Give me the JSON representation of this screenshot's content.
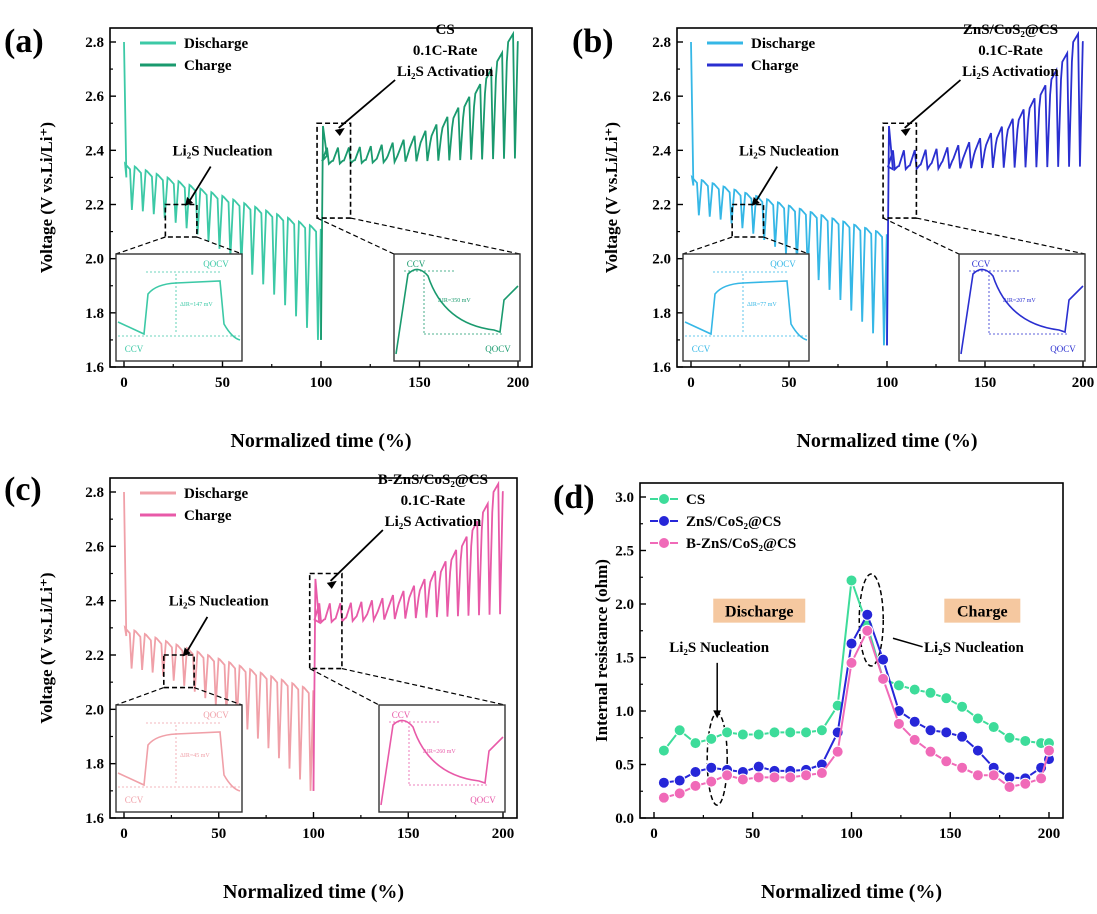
{
  "chart_data": [
    {
      "type": "line",
      "panel_label": "(a)",
      "xlabel": "Normalized time (%)",
      "ylabel": "Voltage (V vs.Li/Li⁺)",
      "xlim": [
        0,
        200
      ],
      "ylim": [
        1.6,
        2.8
      ],
      "x_ticks": [
        "0",
        "50",
        "100",
        "150",
        "200"
      ],
      "y_ticks": [
        "1.6",
        "1.8",
        "2.0",
        "2.2",
        "2.4",
        "2.6",
        "2.8"
      ],
      "annotation_lines": [
        "CS",
        "0.1C-Rate",
        "Li₂S Activation"
      ],
      "nucleation_label": "Li₂S Nucleation",
      "legend": [
        "Discharge",
        "Charge"
      ],
      "colors": {
        "discharge": "#3cc9a6",
        "charge": "#1a9a6e"
      },
      "inset_left": {
        "top_label": "QOCV",
        "bottom_label": "CCV",
        "value_label": "ΔIR=147 mV"
      },
      "inset_right": {
        "top_label": "CCV",
        "bottom_label": "QOCV",
        "value_label": "ΔIR=350 mV"
      },
      "discharge": {
        "start": 2.8,
        "first_ccv": 2.3,
        "qocv_start": 2.35,
        "qocv_end": 2.12,
        "ccv_start": 2.18,
        "ccv_end": 1.7
      },
      "charge": {
        "spike": 2.49,
        "first_ccv": 2.38,
        "qocv_start": 2.36,
        "qocv_end": 2.38,
        "ccv_start": 2.38,
        "ccv_end": 2.8
      },
      "pulses": 18
    },
    {
      "type": "line",
      "panel_label": "(b)",
      "xlabel": "Normalized time (%)",
      "ylabel": "Voltage (V vs.Li/Li⁺)",
      "xlim": [
        0,
        200
      ],
      "ylim": [
        1.6,
        2.8
      ],
      "x_ticks": [
        "0",
        "50",
        "100",
        "150",
        "200"
      ],
      "y_ticks": [
        "1.6",
        "1.8",
        "2.0",
        "2.2",
        "2.4",
        "2.6",
        "2.8"
      ],
      "annotation_lines": [
        "ZnS/CoS₂@CS",
        "0.1C-Rate",
        "Li₂S Activation"
      ],
      "nucleation_label": "Li₂S Nucleation",
      "legend": [
        "Discharge",
        "Charge"
      ],
      "colors": {
        "discharge": "#35b7e6",
        "charge": "#2a2fd0"
      },
      "inset_left": {
        "top_label": "QOCV",
        "bottom_label": "CCV",
        "value_label": "ΔIR=77 mV"
      },
      "inset_right": {
        "top_label": "CCV",
        "bottom_label": "QOCV",
        "value_label": "ΔIR=207 mV"
      },
      "discharge": {
        "start": 2.8,
        "first_ccv": 2.27,
        "qocv_start": 2.3,
        "qocv_end": 2.1,
        "ccv_start": 2.16,
        "ccv_end": 1.68
      },
      "charge": {
        "spike": 2.49,
        "first_ccv": 2.33,
        "qocv_start": 2.34,
        "qocv_end": 2.35,
        "ccv_start": 2.37,
        "ccv_end": 2.8
      },
      "pulses": 18
    },
    {
      "type": "line",
      "panel_label": "(c)",
      "xlabel": "Normalized time (%)",
      "ylabel": "Voltage (V vs.Li/Li⁺)",
      "xlim": [
        0,
        200
      ],
      "ylim": [
        1.6,
        2.8
      ],
      "x_ticks": [
        "0",
        "50",
        "100",
        "150",
        "200"
      ],
      "y_ticks": [
        "1.6",
        "1.8",
        "2.0",
        "2.2",
        "2.4",
        "2.6",
        "2.8"
      ],
      "annotation_lines": [
        "B-ZnS/CoS₂@CS",
        "0.1C-Rate",
        "Li₂S Activation"
      ],
      "nucleation_label": "Li₂S Nucleation",
      "legend": [
        "Discharge",
        "Charge"
      ],
      "colors": {
        "discharge": "#f0a0a8",
        "charge": "#e85aa8"
      },
      "inset_left": {
        "top_label": "QOCV",
        "bottom_label": "CCV",
        "value_label": "ΔIR=45 mV"
      },
      "inset_right": {
        "top_label": "CCV",
        "bottom_label": "QOCV",
        "value_label": "ΔIR=260 mV"
      },
      "discharge": {
        "start": 2.8,
        "first_ccv": 2.27,
        "qocv_start": 2.3,
        "qocv_end": 2.08,
        "ccv_start": 2.15,
        "ccv_end": 1.7
      },
      "charge": {
        "spike": 2.48,
        "first_ccv": 2.32,
        "qocv_start": 2.33,
        "qocv_end": 2.36,
        "ccv_start": 2.36,
        "ccv_end": 2.8
      },
      "pulses": 18
    },
    {
      "type": "line",
      "panel_label": "(d)",
      "xlabel": "Normalized time (%)",
      "ylabel": "Internal resistance (ohm)",
      "xlim": [
        0,
        200
      ],
      "ylim": [
        0,
        3.0
      ],
      "x_ticks": [
        "0",
        "50",
        "100",
        "150",
        "200"
      ],
      "y_ticks": [
        "0.0",
        "0.5",
        "1.0",
        "1.5",
        "2.0",
        "2.5",
        "3.0"
      ],
      "discharge_tag": "Discharge",
      "charge_tag": "Charge",
      "nucleation_label": "Li₂S Nucleation",
      "tag_color": "#f5c8a0",
      "series": [
        {
          "name": "CS",
          "color": "#3ddc9a",
          "x": [
            5,
            13,
            21,
            29,
            37,
            45,
            53,
            61,
            69,
            77,
            85,
            93,
            100,
            108,
            116,
            124,
            132,
            140,
            148,
            156,
            164,
            172,
            180,
            188,
            196,
            200
          ],
          "values": [
            0.63,
            0.82,
            0.7,
            0.74,
            0.8,
            0.78,
            0.78,
            0.8,
            0.8,
            0.8,
            0.82,
            1.05,
            2.22,
            1.8,
            1.3,
            1.24,
            1.2,
            1.17,
            1.12,
            1.04,
            0.93,
            0.85,
            0.75,
            0.72,
            0.7,
            0.7
          ]
        },
        {
          "name": "ZnS/CoS₂@CS",
          "color": "#2626d8",
          "x": [
            5,
            13,
            21,
            29,
            37,
            45,
            53,
            61,
            69,
            77,
            85,
            93,
            100,
            108,
            116,
            124,
            132,
            140,
            148,
            156,
            164,
            172,
            180,
            188,
            196,
            200
          ],
          "values": [
            0.33,
            0.35,
            0.43,
            0.47,
            0.45,
            0.43,
            0.48,
            0.44,
            0.44,
            0.45,
            0.5,
            0.8,
            1.63,
            1.9,
            1.48,
            1.0,
            0.9,
            0.82,
            0.8,
            0.76,
            0.63,
            0.47,
            0.38,
            0.37,
            0.47,
            0.55
          ]
        },
        {
          "name": "B-ZnS/CoS₂@CS",
          "color": "#f06ab8",
          "x": [
            5,
            13,
            21,
            29,
            37,
            45,
            53,
            61,
            69,
            77,
            85,
            93,
            100,
            108,
            116,
            124,
            132,
            140,
            148,
            156,
            164,
            172,
            180,
            188,
            196,
            200
          ],
          "values": [
            0.19,
            0.23,
            0.3,
            0.34,
            0.4,
            0.36,
            0.38,
            0.38,
            0.38,
            0.4,
            0.42,
            0.62,
            1.45,
            1.75,
            1.3,
            0.88,
            0.73,
            0.62,
            0.53,
            0.47,
            0.4,
            0.4,
            0.29,
            0.32,
            0.37,
            0.63
          ]
        }
      ]
    }
  ]
}
